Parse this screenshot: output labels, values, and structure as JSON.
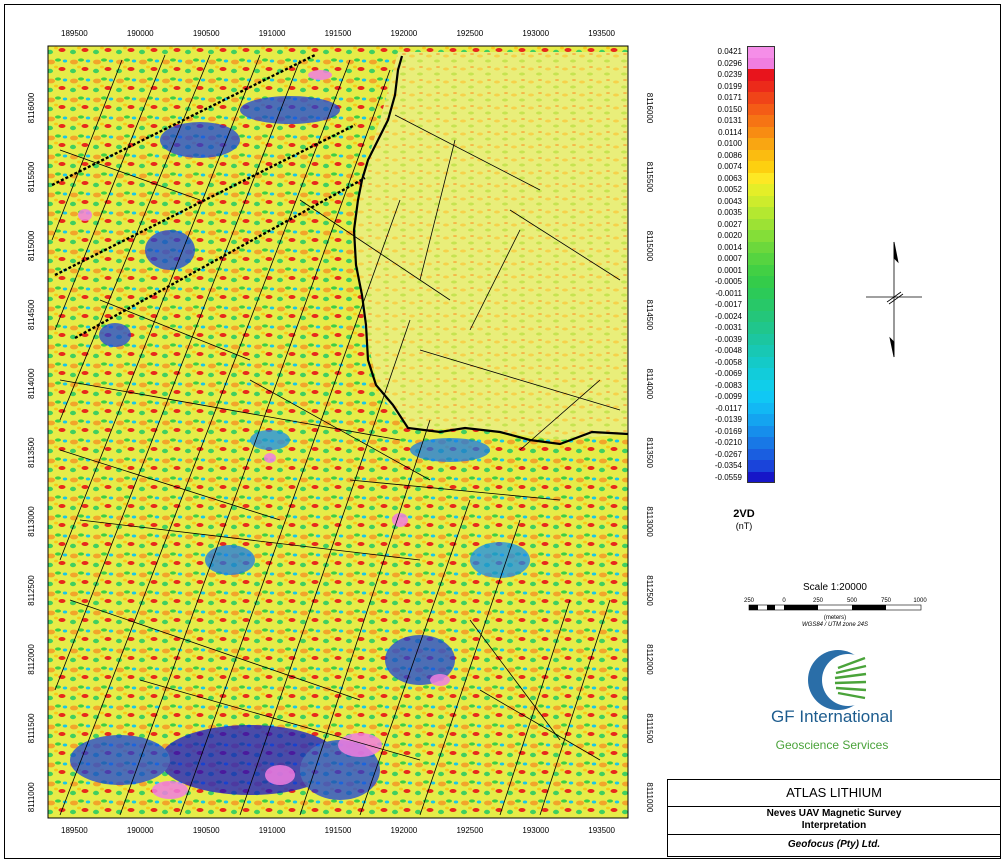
{
  "map": {
    "x_ticks": [
      "189500",
      "190000",
      "190500",
      "191000",
      "191500",
      "192000",
      "192500",
      "193000",
      "193500"
    ],
    "y_ticks": [
      "8116000",
      "8115500",
      "8115000",
      "8114500",
      "8114000",
      "8113500",
      "8113000",
      "8112500",
      "8112000",
      "8111500",
      "8111000"
    ],
    "x_range": [
      189300,
      193700
    ],
    "y_range": [
      8110850,
      8116450
    ],
    "colors": {
      "map_border": "#000000",
      "interpreted_lineament": "#000000",
      "boundary": "#000000"
    }
  },
  "legend": {
    "title": "2VD",
    "unit": "(nT)",
    "entries": [
      {
        "value": "0.0421",
        "color": "#f58ee8"
      },
      {
        "value": "0.0296",
        "color": "#f07ee0"
      },
      {
        "value": "0.0239",
        "color": "#e8141c"
      },
      {
        "value": "0.0199",
        "color": "#ec2a1a"
      },
      {
        "value": "0.0171",
        "color": "#f04418"
      },
      {
        "value": "0.0150",
        "color": "#f45c16"
      },
      {
        "value": "0.0131",
        "color": "#f67414"
      },
      {
        "value": "0.0114",
        "color": "#f88c12"
      },
      {
        "value": "0.0100",
        "color": "#f9a612"
      },
      {
        "value": "0.0086",
        "color": "#fbbc10"
      },
      {
        "value": "0.0074",
        "color": "#fdd010"
      },
      {
        "value": "0.0063",
        "color": "#fde824"
      },
      {
        "value": "0.0052",
        "color": "#e4ee28"
      },
      {
        "value": "0.0043",
        "color": "#cdec2c"
      },
      {
        "value": "0.0035",
        "color": "#b4e830"
      },
      {
        "value": "0.0027",
        "color": "#9ce234"
      },
      {
        "value": "0.0020",
        "color": "#84de38"
      },
      {
        "value": "0.0014",
        "color": "#6cd83c"
      },
      {
        "value": "0.0007",
        "color": "#56d440"
      },
      {
        "value": "0.0001",
        "color": "#42d044"
      },
      {
        "value": "-0.0005",
        "color": "#34cc4a"
      },
      {
        "value": "-0.0011",
        "color": "#2cca58"
      },
      {
        "value": "-0.0017",
        "color": "#28c868"
      },
      {
        "value": "-0.0024",
        "color": "#24c67a"
      },
      {
        "value": "-0.0031",
        "color": "#20c68c"
      },
      {
        "value": "-0.0039",
        "color": "#1cc6a0"
      },
      {
        "value": "-0.0048",
        "color": "#18c8b4"
      },
      {
        "value": "-0.0058",
        "color": "#14cac8"
      },
      {
        "value": "-0.0069",
        "color": "#12ccda"
      },
      {
        "value": "-0.0083",
        "color": "#10ceea"
      },
      {
        "value": "-0.0099",
        "color": "#10c8f4"
      },
      {
        "value": "-0.0117",
        "color": "#12b8f4"
      },
      {
        "value": "-0.0139",
        "color": "#14a4f0"
      },
      {
        "value": "-0.0169",
        "color": "#168eec"
      },
      {
        "value": "-0.0210",
        "color": "#1878e6"
      },
      {
        "value": "-0.0267",
        "color": "#1a5ee0"
      },
      {
        "value": "-0.0354",
        "color": "#1a44da"
      },
      {
        "value": "-0.0559",
        "color": "#1616c8"
      }
    ]
  },
  "scale": {
    "title": "Scale 1:20000",
    "labels": [
      "250",
      "0",
      "250",
      "500",
      "750",
      "1000"
    ],
    "units": "(meters)",
    "projection": "WGS84 / UTM zone 24S"
  },
  "logo": {
    "company": "GF International",
    "tagline": "Geoscience Services",
    "colors": {
      "company": "#1d5c8e",
      "tagline": "#4aa33a"
    }
  },
  "title_block": {
    "client": "ATLAS LITHIUM",
    "title_line1": "Neves UAV Magnetic Survey",
    "title_line2": "Interpretation",
    "firm": "Geofocus (Pty) Ltd."
  }
}
